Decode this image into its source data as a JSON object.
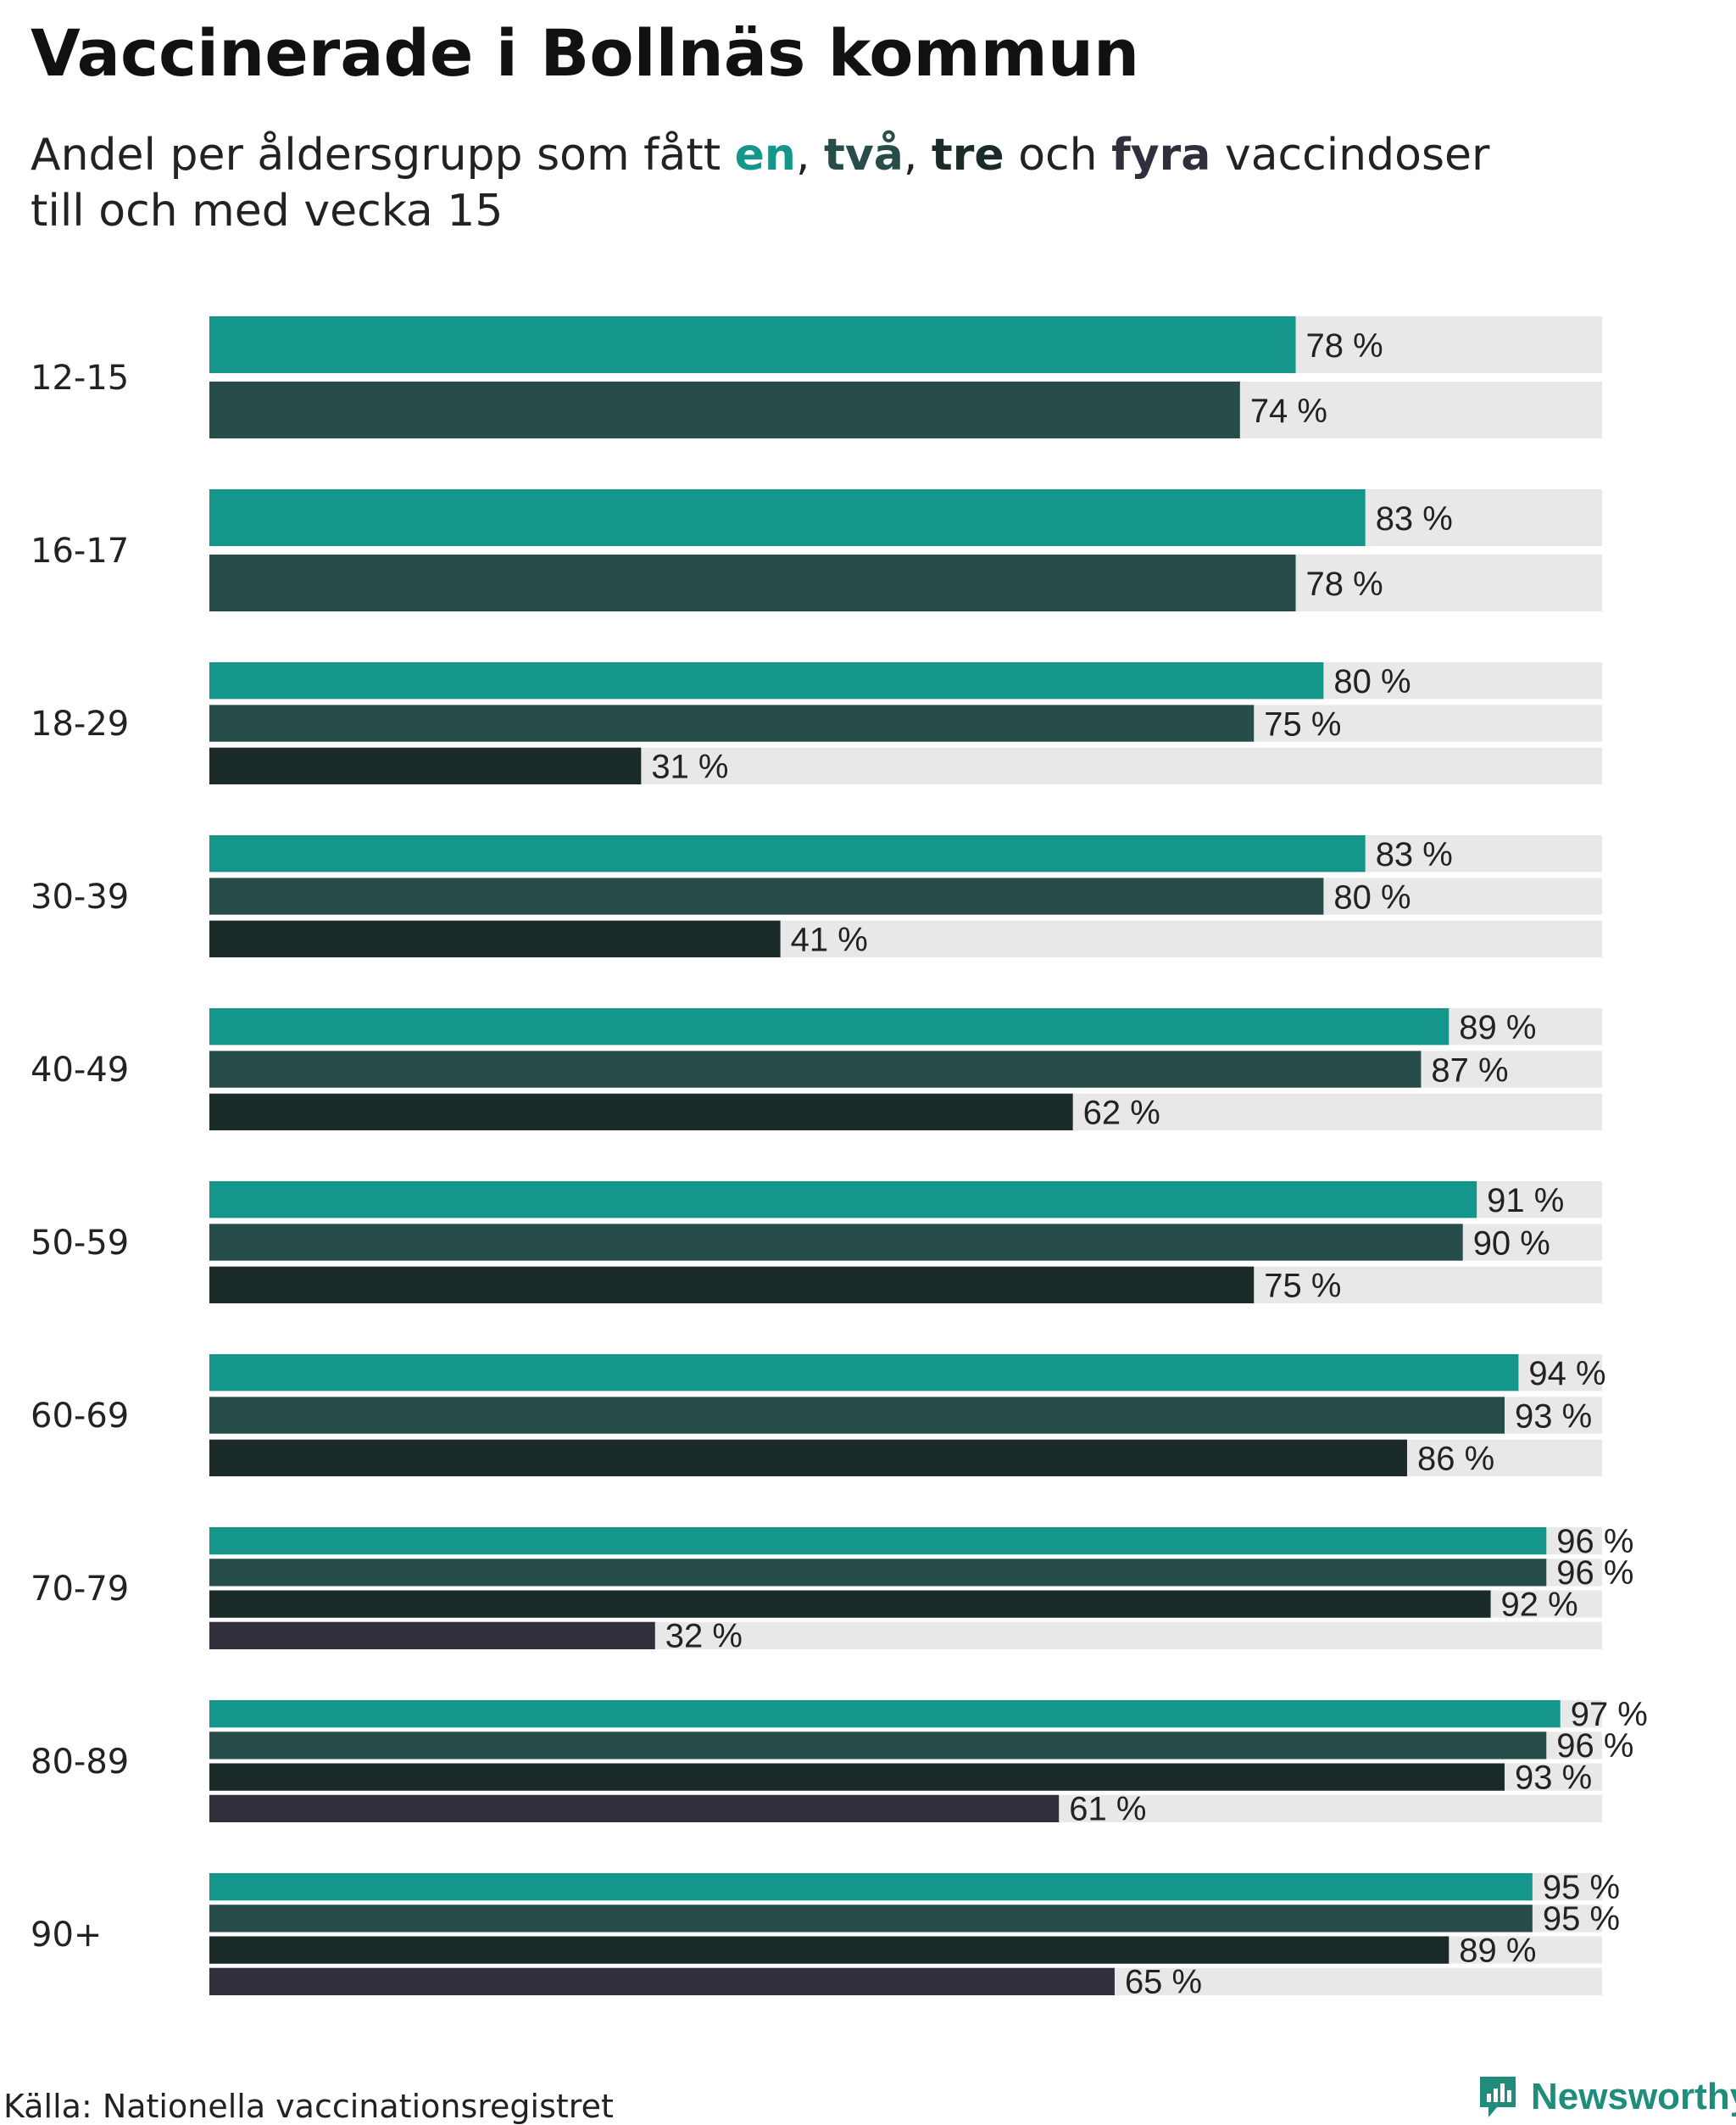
{
  "header": {
    "title": "Vaccinerade i Bollnäs kommun",
    "subtitle_line1_prefix": "Andel per åldersgrupp som fått ",
    "kw_one": "en",
    "sep1": ", ",
    "kw_two": "två",
    "sep2": ", ",
    "kw_three": "tre",
    "connector": " och ",
    "kw_four": "fyra",
    "subtitle_line1_suffix": " vaccindoser",
    "subtitle_line2": "till och med vecka 15"
  },
  "colors": {
    "dose1": "#14968a",
    "dose2": "#264d4a",
    "dose3": "#1a2a28",
    "dose4": "#302f3b",
    "track": "#e8e8e8"
  },
  "chart_data": {
    "type": "bar",
    "orientation": "horizontal",
    "title": "Vaccinerade i Bollnäs kommun",
    "subtitle": "Andel per åldersgrupp som fått en, två, tre och fyra vaccindoser till och med vecka 15",
    "unit_suffix": " %",
    "xlim": [
      0,
      100
    ],
    "series_names": [
      "en",
      "två",
      "tre",
      "fyra"
    ],
    "categories": [
      "12-15",
      "16-17",
      "18-29",
      "30-39",
      "40-49",
      "50-59",
      "60-69",
      "70-79",
      "80-89",
      "90+"
    ],
    "groups": [
      {
        "label": "12-15",
        "values": [
          78,
          74
        ]
      },
      {
        "label": "16-17",
        "values": [
          83,
          78
        ]
      },
      {
        "label": "18-29",
        "values": [
          80,
          75,
          31
        ]
      },
      {
        "label": "30-39",
        "values": [
          83,
          80,
          41
        ]
      },
      {
        "label": "40-49",
        "values": [
          89,
          87,
          62
        ]
      },
      {
        "label": "50-59",
        "values": [
          91,
          90,
          75
        ]
      },
      {
        "label": "60-69",
        "values": [
          94,
          93,
          86
        ]
      },
      {
        "label": "70-79",
        "values": [
          96,
          96,
          92,
          32
        ]
      },
      {
        "label": "80-89",
        "values": [
          97,
          96,
          93,
          61
        ]
      },
      {
        "label": "90+",
        "values": [
          95,
          95,
          89,
          65
        ]
      }
    ]
  },
  "footer": {
    "source": "Källa: Nationella vaccinationsregistret",
    "brand": "Newsworthy",
    "brand_icon": "newsworthy-logo-icon"
  }
}
